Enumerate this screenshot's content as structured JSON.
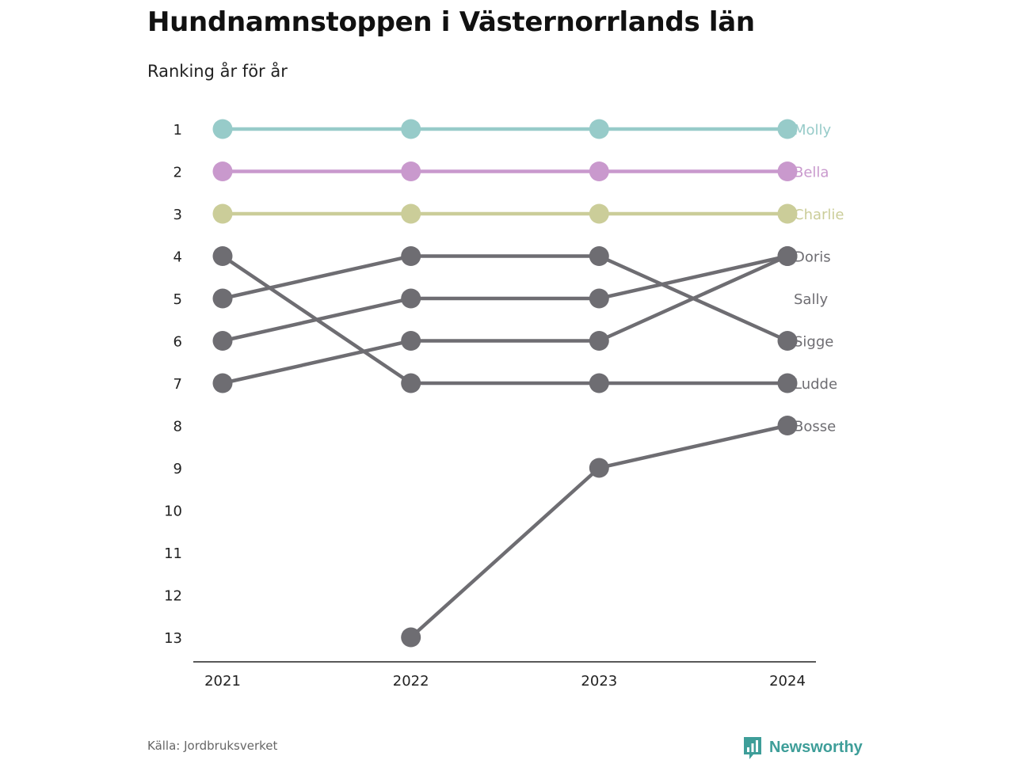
{
  "chart_data": {
    "type": "line",
    "title": "Hundnamnstoppen i Västernorrlands län",
    "subtitle": "Ranking år för år",
    "x": [
      "2021",
      "2022",
      "2023",
      "2024"
    ],
    "y_ticks": [
      "1",
      "2",
      "3",
      "4",
      "5",
      "6",
      "7",
      "8",
      "9",
      "10",
      "11",
      "12",
      "13"
    ],
    "ylim": [
      1,
      13
    ],
    "y_reversed": true,
    "grid": false,
    "series": [
      {
        "name": "Molly",
        "values": [
          1,
          1,
          1,
          1
        ],
        "color": "#97cbc9"
      },
      {
        "name": "Bella",
        "values": [
          2,
          2,
          2,
          2
        ],
        "color": "#c999cd"
      },
      {
        "name": "Charlie",
        "values": [
          3,
          3,
          3,
          3
        ],
        "color": "#cbcd99"
      },
      {
        "name": "Doris",
        "values": [
          7,
          6,
          6,
          4
        ],
        "color": "#6e6d72"
      },
      {
        "name": "Sally",
        "values": [
          null,
          null,
          null,
          null
        ],
        "color": "#6e6d72"
      },
      {
        "name": "Sigge",
        "values": [
          5,
          4,
          4,
          6
        ],
        "color": "#6e6d72"
      },
      {
        "name": "Ludde",
        "values": [
          4,
          7,
          7,
          7
        ],
        "color": "#6e6d72"
      },
      {
        "name": "Bosse",
        "values": [
          null,
          13,
          9,
          8
        ],
        "color": "#6e6d72"
      },
      {
        "name": "",
        "values": [
          6,
          5,
          5,
          4
        ],
        "color": "#6e6d72"
      }
    ],
    "end_labels": [
      {
        "text": "Molly",
        "rank": 1,
        "color": "#97cbc9"
      },
      {
        "text": "Bella",
        "rank": 2,
        "color": "#c999cd"
      },
      {
        "text": "Charlie",
        "rank": 3,
        "color": "#cbcd99"
      },
      {
        "text": "Doris",
        "rank": 4,
        "color": "#6e6d72"
      },
      {
        "text": "Sally",
        "rank": 5,
        "color": "#6e6d72"
      },
      {
        "text": "Sigge",
        "rank": 6,
        "color": "#6e6d72"
      },
      {
        "text": "Ludde",
        "rank": 7,
        "color": "#6e6d72"
      },
      {
        "text": "Bosse",
        "rank": 8,
        "color": "#6e6d72"
      }
    ]
  },
  "footer": {
    "source": "Källa: Jordbruksverket",
    "brand": "Newsworthy",
    "brand_color": "#3e9e99",
    "brand_icon": "bar-chart-speech-bubble-icon"
  }
}
